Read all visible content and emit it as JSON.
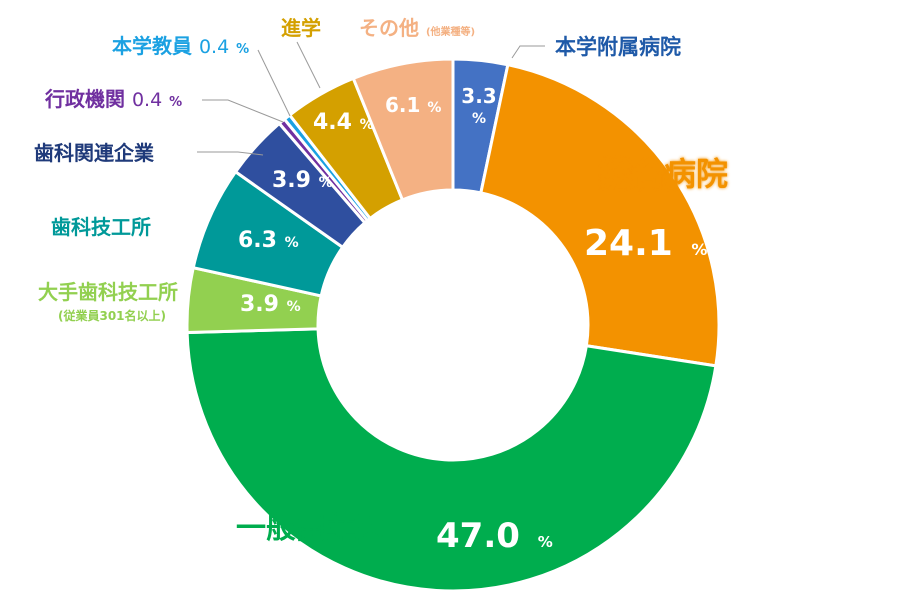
{
  "chart_data": {
    "type": "pie",
    "variant": "donut",
    "unit": "%",
    "slices": [
      {
        "name": "本学附属病院",
        "value": 3.3,
        "color": "#4472c4"
      },
      {
        "name": "総合病院",
        "value": 24.1,
        "color": "#f39200"
      },
      {
        "name": "一般開業医",
        "value": 47.0,
        "color": "#00ad4e"
      },
      {
        "name": "大手歯科技工所",
        "note": "(従業員301名以上)",
        "value": 3.9,
        "color": "#92d050"
      },
      {
        "name": "歯科技工所",
        "value": 6.3,
        "color": "#009999"
      },
      {
        "name": "歯科関連企業",
        "value": 3.9,
        "color": "#2f4f9f"
      },
      {
        "name": "行政機関",
        "value": 0.4,
        "color": "#7030a0"
      },
      {
        "name": "本学教員",
        "value": 0.4,
        "color": "#1ba1e2"
      },
      {
        "name": "進学",
        "value": 4.4,
        "color": "#d4a000"
      },
      {
        "name": "その他",
        "note": "(他業種等)",
        "value": 6.1,
        "color": "#f4b183"
      }
    ],
    "labels": {
      "s0_name": "本学附属病院",
      "s0_value": "3.3",
      "s0_pct": "%",
      "s1_name": "総合病院",
      "s1_value": "24.1",
      "s1_pct": "%",
      "s2_name": "一般開業医",
      "s2_value": "47.0",
      "s2_pct": "%",
      "s3_name": "大手歯科技工所",
      "s3_note": "(従業員301名以上)",
      "s3_value": "3.9",
      "s3_pct": "%",
      "s4_name": "歯科技工所",
      "s4_value": "6.3",
      "s4_pct": "%",
      "s5_name": "歯科関連企業",
      "s5_value": "3.9",
      "s5_pct": "%",
      "s6_name": "行政機関",
      "s6_value": "0.4",
      "s6_pct": "%",
      "s7_name": "本学教員",
      "s7_value": "0.4",
      "s7_pct": "%",
      "s8_name": "進学",
      "s8_value": "4.4",
      "s8_pct": "%",
      "s9_name": "その他",
      "s9_note": "(他業種等)",
      "s9_value": "6.1",
      "s9_pct": "%"
    }
  }
}
